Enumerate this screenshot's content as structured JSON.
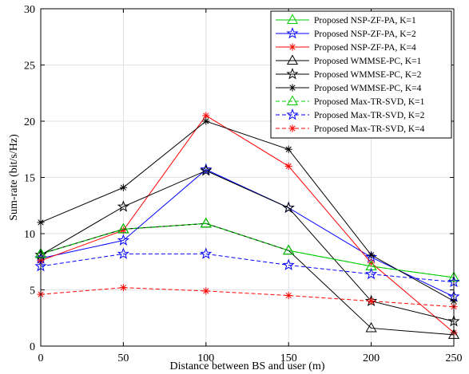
{
  "chart_data": {
    "type": "line",
    "title": "",
    "xlabel": "Distance between BS and user (m)",
    "ylabel": "Sum-rate (bit/s/Hz)",
    "xlim": [
      0,
      250
    ],
    "ylim": [
      0,
      30
    ],
    "xticks": [
      0,
      50,
      100,
      150,
      200,
      250
    ],
    "yticks": [
      0,
      5,
      10,
      15,
      20,
      25,
      30
    ],
    "grid": true,
    "legend_position": "top-right",
    "x": [
      0,
      50,
      100,
      150,
      200,
      250
    ],
    "series": [
      {
        "name": "Proposed NSP-ZF-PA, K=1",
        "color": "#00cc00",
        "marker": "triangle",
        "dash": "solid",
        "values": [
          8.2,
          10.4,
          10.9,
          8.5,
          7.1,
          6.1
        ]
      },
      {
        "name": "Proposed NSP-ZF-PA, K=2",
        "color": "#0000ff",
        "marker": "star",
        "dash": "solid",
        "values": [
          7.8,
          9.4,
          15.7,
          12.3,
          7.9,
          4.4
        ]
      },
      {
        "name": "Proposed NSP-ZF-PA, K=4",
        "color": "#ff0000",
        "marker": "asterisk",
        "dash": "solid",
        "values": [
          7.6,
          10.3,
          20.5,
          16.0,
          7.4,
          1.2
        ]
      },
      {
        "name": "Proposed WMMSE-PC, K=1",
        "color": "#000000",
        "marker": "triangle",
        "dash": "solid",
        "values": [
          8.2,
          10.4,
          10.9,
          8.5,
          1.6,
          1.0
        ]
      },
      {
        "name": "Proposed WMMSE-PC, K=2",
        "color": "#000000",
        "marker": "star",
        "dash": "solid",
        "values": [
          8.1,
          12.4,
          15.6,
          12.3,
          4.0,
          2.2
        ]
      },
      {
        "name": "Proposed WMMSE-PC, K=4",
        "color": "#000000",
        "marker": "asterisk",
        "dash": "solid",
        "values": [
          11.0,
          14.1,
          20.0,
          17.5,
          8.1,
          4.0
        ]
      },
      {
        "name": "Proposed Max-TR-SVD, K=1",
        "color": "#00cc00",
        "marker": "triangle",
        "dash": "dashed",
        "values": [
          8.2,
          10.4,
          10.9,
          8.5,
          7.1,
          6.1
        ]
      },
      {
        "name": "Proposed Max-TR-SVD, K=2",
        "color": "#0000ff",
        "marker": "star",
        "dash": "dashed",
        "values": [
          7.1,
          8.2,
          8.2,
          7.2,
          6.4,
          5.7
        ]
      },
      {
        "name": "Proposed Max-TR-SVD, K=4",
        "color": "#ff0000",
        "marker": "asterisk",
        "dash": "dashed",
        "values": [
          4.6,
          5.2,
          4.9,
          4.5,
          4.0,
          3.5
        ]
      }
    ]
  }
}
